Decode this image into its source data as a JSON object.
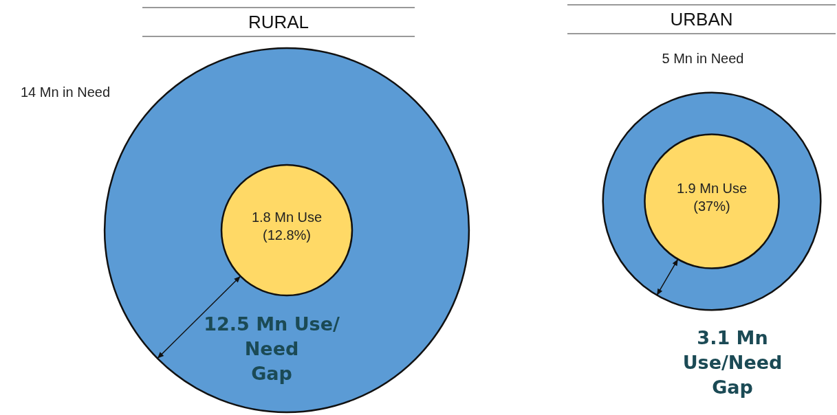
{
  "chart_data": [
    {
      "type": "other",
      "title": "RURAL",
      "values": [
        14,
        1.8
      ],
      "colors": [
        "#5b9bd5",
        "#ffd966"
      ],
      "value_labels": [
        "14 Mn in Need",
        "1.8 Mn Use\n(12.8%)"
      ],
      "annotations": [
        "12.5 Mn Use/\nNeed\nGap"
      ]
    },
    {
      "type": "other",
      "title": "URBAN",
      "values": [
        5,
        1.9
      ],
      "colors": [
        "#5b9bd5",
        "#ffd966"
      ],
      "value_labels": [
        "5 Mn in Need",
        "1.9 Mn Use\n(37%)"
      ],
      "annotations": [
        "3.1 Mn\nUse/Need\nGap"
      ]
    }
  ]
}
